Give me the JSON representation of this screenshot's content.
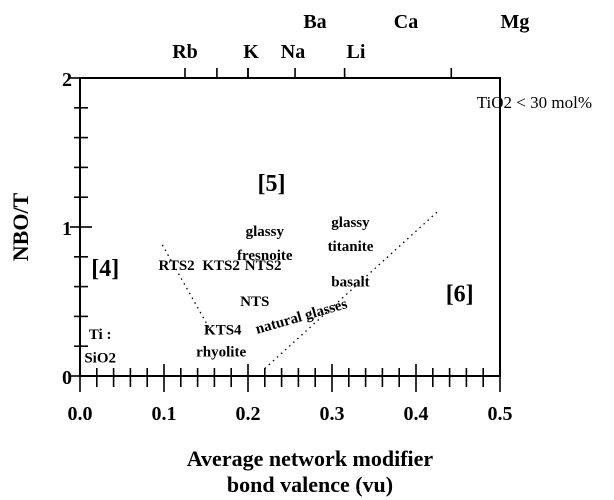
{
  "chart_data": {
    "type": "scatter",
    "title": "",
    "xlabel": "Average network modifier",
    "xlabel_line2": "bond valence (vu)",
    "ylabel": "NBO/T",
    "xlim": [
      0,
      0.5
    ],
    "ylim": [
      0,
      2
    ],
    "x_ticks": [
      "0.0",
      "0.1",
      "0.2",
      "0.3",
      "0.4",
      "0.5"
    ],
    "y_ticks": [
      "0",
      "1",
      "2"
    ],
    "note": "TiO2 < 30 mol%",
    "grid": false,
    "top_axis_elements": [
      {
        "label": "Rb",
        "x": 0.125
      },
      {
        "label": "K",
        "x": 0.163
      },
      {
        "label": "Na",
        "x": 0.2
      },
      {
        "label": "Li",
        "x": 0.256
      },
      {
        "label": "Ba",
        "x": 0.2
      },
      {
        "label": "Ca",
        "x": 0.315
      },
      {
        "label": "Mg",
        "x": 0.442
      }
    ],
    "regions": [
      {
        "label": "[4]",
        "x": 0.03,
        "y": 0.67
      },
      {
        "label": "[5]",
        "x": 0.228,
        "y": 1.24
      },
      {
        "label": "[6]",
        "x": 0.452,
        "y": 0.5
      }
    ],
    "labels": [
      {
        "text": "RTS2",
        "x": 0.115,
        "y": 0.71
      },
      {
        "text": "KTS2",
        "x": 0.168,
        "y": 0.71
      },
      {
        "text": "NTS2",
        "x": 0.218,
        "y": 0.71
      },
      {
        "text": "NTS",
        "x": 0.208,
        "y": 0.47
      },
      {
        "text": "KTS4",
        "x": 0.17,
        "y": 0.28
      },
      {
        "text": "rhyolite",
        "x": 0.168,
        "y": 0.13
      },
      {
        "text": "glassy",
        "x": 0.22,
        "y": 0.94
      },
      {
        "text": "fresnoite",
        "x": 0.22,
        "y": 0.78
      },
      {
        "text": "glassy",
        "x": 0.322,
        "y": 1.0
      },
      {
        "text": "titanite",
        "x": 0.322,
        "y": 0.84
      },
      {
        "text": "basalt",
        "x": 0.322,
        "y": 0.6
      },
      {
        "text": "Ti :",
        "x": 0.024,
        "y": 0.25
      },
      {
        "text": "SiO2",
        "x": 0.024,
        "y": 0.09
      }
    ],
    "curved_label": {
      "text": "natural glasses",
      "x": 0.265,
      "y": 0.37
    },
    "dotted_lines": [
      {
        "points": [
          [
            0.098,
            0.88
          ],
          [
            0.158,
            0.28
          ]
        ]
      },
      {
        "points": [
          [
            0.22,
            0.05
          ],
          [
            0.425,
            1.1
          ]
        ]
      }
    ]
  }
}
